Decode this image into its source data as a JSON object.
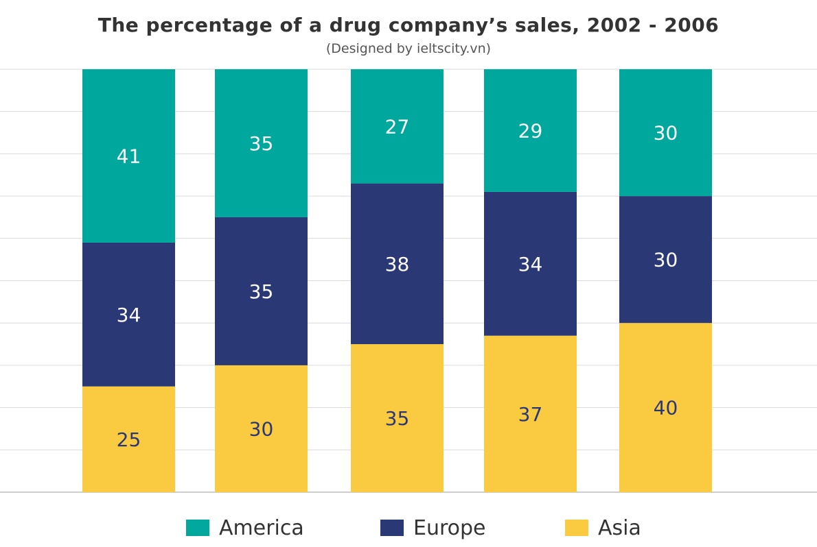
{
  "chart_data": {
    "type": "bar",
    "stacked": true,
    "title": "The percentage of a drug company’s sales, 2002 - 2006",
    "subtitle": "(Designed by ieltscity.vn)",
    "categories": [
      "",
      "",
      "",
      "",
      ""
    ],
    "series": [
      {
        "name": "Asia",
        "color": "#FACA41",
        "values": [
          25,
          30,
          35,
          37,
          40
        ]
      },
      {
        "name": "Europe",
        "color": "#2B3876",
        "values": [
          34,
          35,
          38,
          34,
          30
        ]
      },
      {
        "name": "America",
        "color": "#00A79D",
        "values": [
          41,
          35,
          27,
          29,
          30
        ]
      }
    ],
    "ylim": [
      0,
      100
    ],
    "grid": true,
    "legend_position": "bottom",
    "data_labels": true
  },
  "legend": {
    "items": [
      {
        "label": "America",
        "color": "#00A79D"
      },
      {
        "label": "Europe",
        "color": "#2B3876"
      },
      {
        "label": "Asia",
        "color": "#FACA41"
      }
    ]
  }
}
